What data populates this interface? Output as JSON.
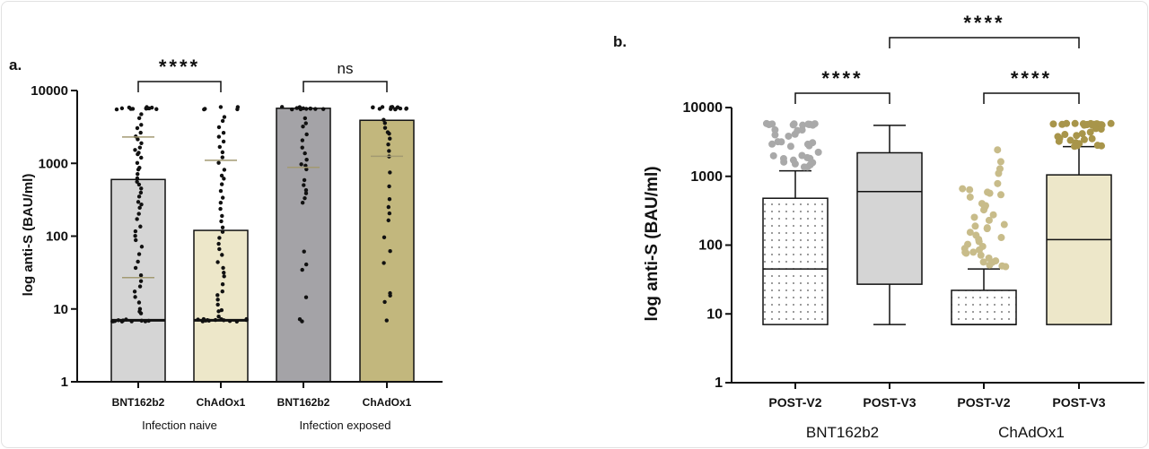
{
  "chart_data": [
    {
      "panel_label": "a.",
      "type": "bar",
      "ylabel": "log anti-S (BAU/ml)",
      "yscale": "log",
      "ylim": [
        1,
        10000
      ],
      "yticks": [
        "1",
        "10",
        "100",
        "1000",
        "10000"
      ],
      "categories": [
        "BNT162b2",
        "ChAdOx1",
        "BNT162b2",
        "ChAdOx1"
      ],
      "groups": [
        {
          "label": "Infection naive",
          "categories": [
            0,
            1
          ]
        },
        {
          "label": "Infection exposed",
          "categories": [
            2,
            3
          ]
        }
      ],
      "bar_colors": [
        "#d5d5d5",
        "#ede7c9",
        "#a4a3a7",
        "#c2b77d"
      ],
      "values": [
        600,
        120,
        5700,
        3900
      ],
      "line_markers": [
        [
          7,
          27,
          2300
        ],
        [
          7,
          1100
        ],
        [
          880
        ],
        [
          1250
        ]
      ],
      "points": [
        [
          5700,
          5700,
          5700,
          5700,
          5700,
          5700,
          5700,
          5700,
          5700,
          5700,
          5700,
          5700,
          4800,
          4200,
          3500,
          3000,
          2600,
          2300,
          2100,
          1900,
          1700,
          1500,
          1400,
          1300,
          1150,
          1000,
          900,
          800,
          700,
          620,
          560,
          500,
          450,
          400,
          350,
          300,
          270,
          240,
          200,
          170,
          140,
          120,
          100,
          85,
          70,
          55,
          45,
          38,
          30,
          25,
          20,
          17,
          14,
          12,
          10,
          9,
          8.5,
          7,
          7,
          7,
          7,
          7,
          7,
          7,
          7,
          7,
          7,
          7
        ],
        [
          5700,
          5700,
          5700,
          5700,
          5700,
          4500,
          3800,
          3200,
          2600,
          2300,
          2000,
          1700,
          1400,
          1200,
          1000,
          850,
          700,
          600,
          500,
          420,
          350,
          280,
          230,
          190,
          160,
          130,
          110,
          95,
          80,
          65,
          55,
          45,
          38,
          32,
          27,
          22,
          18,
          15,
          13,
          11,
          10,
          9,
          8,
          7,
          7,
          7,
          7,
          7,
          7,
          7,
          7,
          7,
          7,
          7,
          7,
          7
        ],
        [
          5700,
          5700,
          5700,
          5700,
          5700,
          5700,
          5700,
          5700,
          5700,
          5700,
          5700,
          5700,
          4300,
          3700,
          3200,
          2600,
          2000,
          1700,
          1400,
          1150,
          950,
          900,
          850,
          600,
          500,
          430,
          380,
          330,
          280,
          60,
          42,
          35,
          14,
          7,
          7
        ],
        [
          5700,
          5700,
          5700,
          5700,
          5700,
          5700,
          5700,
          5700,
          5700,
          5700,
          5700,
          5700,
          5700,
          4000,
          3600,
          3000,
          2700,
          2500,
          2100,
          1800,
          1500,
          1200,
          750,
          480,
          330,
          260,
          200,
          160,
          100,
          60,
          42,
          17,
          15,
          12,
          7
        ]
      ],
      "significance": [
        {
          "between": [
            0,
            1
          ],
          "label": "****"
        },
        {
          "between": [
            2,
            3
          ],
          "label": "ns"
        }
      ]
    },
    {
      "panel_label": "b.",
      "type": "box",
      "ylabel": "log anti-S (BAU/ml)",
      "yscale": "log",
      "ylim": [
        1,
        10000
      ],
      "yticks": [
        "1",
        "10",
        "100",
        "1000",
        "10000"
      ],
      "categories": [
        "POST-V2",
        "POST-V3",
        "POST-V2",
        "POST-V3"
      ],
      "groups": [
        {
          "label": "BNT162b2",
          "categories": [
            0,
            1
          ]
        },
        {
          "label": "ChAdOx1",
          "categories": [
            2,
            3
          ]
        }
      ],
      "box_fills": [
        "#ffffff",
        "#d5d5d5",
        "#ffffff",
        "#ede7c9"
      ],
      "box_patterns": [
        "dotted",
        "none",
        "dotted",
        "none"
      ],
      "outlier_colors": [
        "#a9a9a9",
        "#a9a9a9",
        "#c8bc8a",
        "#a8954a"
      ],
      "boxes": [
        {
          "whisker_low": 7,
          "q1": 7,
          "median": 45,
          "q3": 480,
          "whisker_high": 1200
        },
        {
          "whisker_low": 7,
          "q1": 27,
          "median": 600,
          "q3": 2200,
          "whisker_high": 5500
        },
        {
          "whisker_low": 7,
          "q1": 7,
          "median": 7,
          "q3": 22,
          "whisker_high": 45
        },
        {
          "whisker_low": 7,
          "q1": 7,
          "median": 120,
          "q3": 1050,
          "whisker_high": 2700
        }
      ],
      "outliers": [
        [
          5700,
          5700,
          5700,
          5700,
          5700,
          5700,
          5700,
          5700,
          5700,
          5700,
          5700,
          4800,
          4700,
          4600,
          4000,
          3900,
          3800,
          3200,
          3100,
          3000,
          3000,
          2900,
          2800,
          2700,
          2200,
          2000,
          1950,
          1900,
          1850,
          1800,
          1700,
          1650,
          1600,
          1550,
          1500,
          1400,
          1350
        ],
        [],
        [
          2400,
          1600,
          1300,
          1100,
          800,
          650,
          620,
          600,
          580,
          550,
          500,
          400,
          380,
          350,
          320,
          280,
          250,
          230,
          200,
          190,
          180,
          170,
          150,
          140,
          130,
          120,
          110,
          100,
          95,
          90,
          85,
          80,
          78,
          75,
          70,
          65,
          60,
          58,
          55,
          52,
          50,
          48
        ],
        [
          5700,
          5700,
          5700,
          5700,
          5700,
          5700,
          5700,
          5700,
          5700,
          5700,
          5700,
          5700,
          5700,
          5700,
          5700,
          5700,
          5700,
          5000,
          4800,
          4500,
          4200,
          4000,
          3900,
          3800,
          3600,
          3500,
          3400,
          3300,
          3200,
          3100,
          3000,
          2950,
          2900,
          2850,
          2800,
          2750
        ]
      ],
      "significance": [
        {
          "between": [
            0,
            1
          ],
          "label": "****"
        },
        {
          "between": [
            2,
            3
          ],
          "label": "****"
        },
        {
          "between": [
            1,
            3
          ],
          "label": "****"
        }
      ]
    }
  ]
}
